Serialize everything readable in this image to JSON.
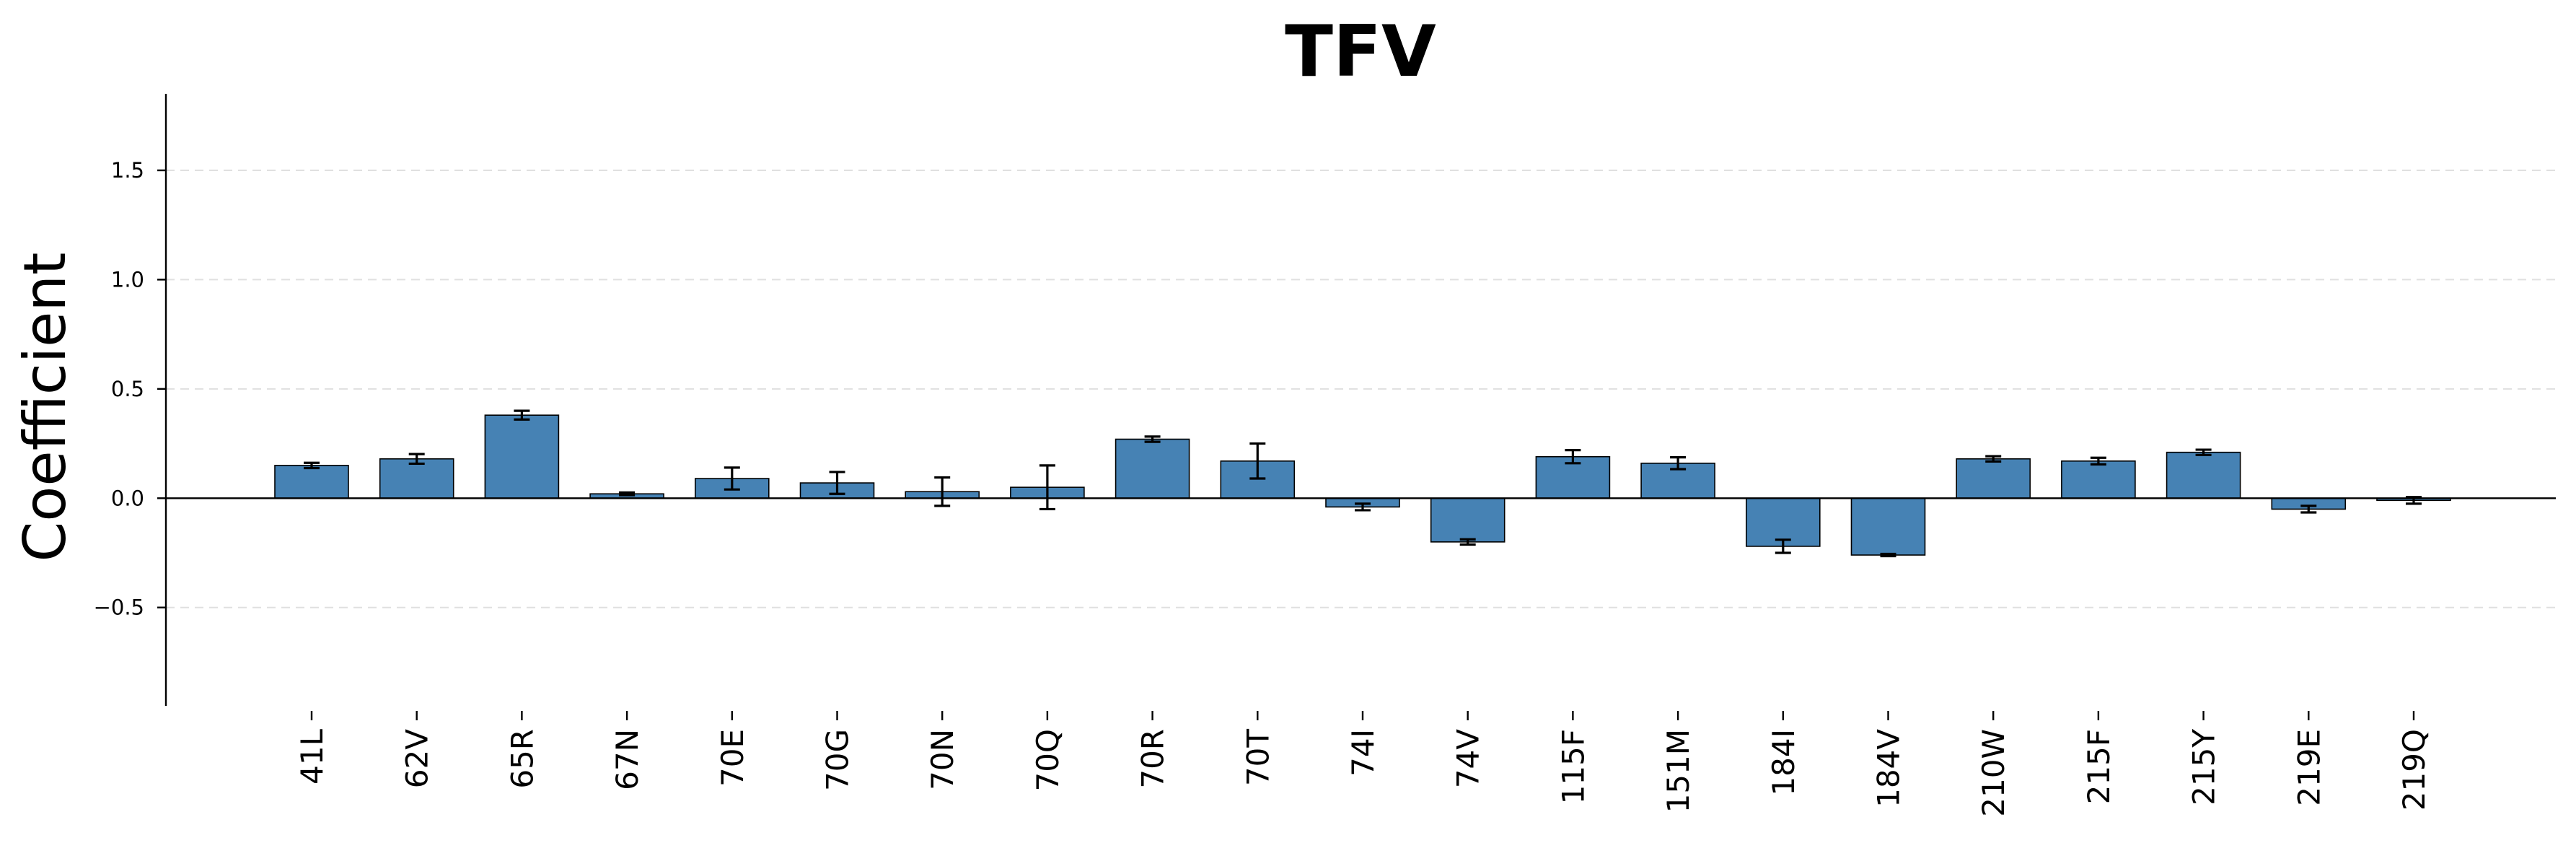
{
  "chart_data": {
    "type": "bar",
    "title": "TFV",
    "xlabel": "",
    "ylabel": "Coefficient",
    "ylim": [
      -0.95,
      1.85
    ],
    "yticks": [
      -0.5,
      0.0,
      0.5,
      1.0,
      1.5
    ],
    "ytick_labels": [
      "−0.5",
      "0.0",
      "0.5",
      "1.0",
      "1.5"
    ],
    "grid": "horizontal dashed",
    "bar_color": "#4682b4",
    "categories": [
      "41L",
      "62V",
      "65R",
      "67N",
      "70E",
      "70G",
      "70N",
      "70Q",
      "70R",
      "70T",
      "74I",
      "74V",
      "115F",
      "151M",
      "184I",
      "184V",
      "210W",
      "215F",
      "215Y",
      "219E",
      "219Q"
    ],
    "values": [
      0.15,
      0.18,
      0.38,
      0.02,
      0.09,
      0.07,
      0.03,
      0.05,
      0.27,
      0.17,
      -0.04,
      -0.2,
      0.19,
      0.16,
      -0.22,
      -0.26,
      0.18,
      0.17,
      0.21,
      -0.05,
      -0.01
    ],
    "errors": [
      0.012,
      0.022,
      0.02,
      0.006,
      0.05,
      0.05,
      0.065,
      0.1,
      0.012,
      0.08,
      0.015,
      0.012,
      0.03,
      0.027,
      0.03,
      0.005,
      0.012,
      0.015,
      0.012,
      0.015,
      0.015
    ]
  }
}
